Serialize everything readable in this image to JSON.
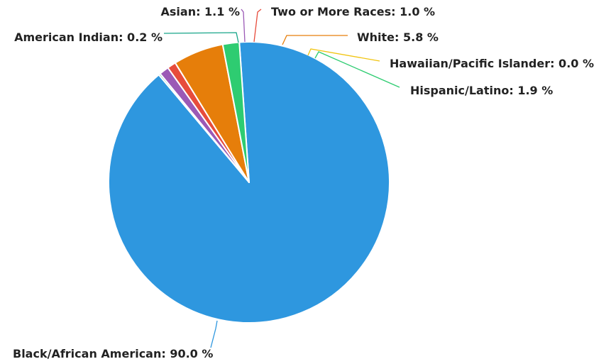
{
  "chart_data": {
    "type": "pie",
    "title": "",
    "start_angle_deg": -4,
    "slices": [
      {
        "label": "Black/African American",
        "value": 90.0,
        "color": "#2E97DF",
        "display": "Black/African American: 90.0 %"
      },
      {
        "label": "American Indian",
        "value": 0.2,
        "color": "#17A589",
        "display": "American Indian: 0.2 %"
      },
      {
        "label": "Asian",
        "value": 1.1,
        "color": "#9B59B6",
        "display": "Asian: 1.1 %"
      },
      {
        "label": "Two or More Races",
        "value": 1.0,
        "color": "#E74C3C",
        "display": "Two or More Races: 1.0 %"
      },
      {
        "label": "White",
        "value": 5.8,
        "color": "#E67E0A",
        "display": "White: 5.8 %"
      },
      {
        "label": "Hawaiian/Pacific Islander",
        "value": 0.0,
        "color": "#F1C40F",
        "display": "Hawaiian/Pacific Islander: 0.0 %"
      },
      {
        "label": "Hispanic/Latino",
        "value": 1.9,
        "color": "#2ECC71",
        "display": "Hispanic/Latino: 1.9 %"
      }
    ]
  }
}
